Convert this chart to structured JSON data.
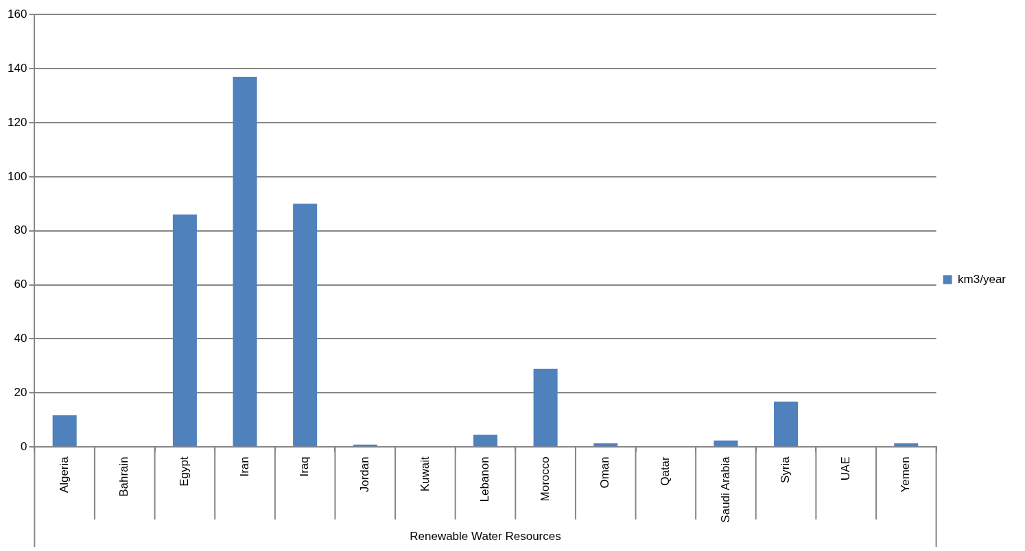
{
  "chart_data": {
    "type": "bar",
    "xlabel": "Renewable Water Resources",
    "categories": [
      "Algeria",
      "Bahrain",
      "Egypt",
      "Iran",
      "Iraq",
      "Jordan",
      "Kuwait",
      "Lebanon",
      "Morocco",
      "Oman",
      "Qatar",
      "Saudi Arabia",
      "Syria",
      "UAE",
      "Yemen"
    ],
    "series": [
      {
        "name": "km3/year",
        "color": "#4f81bd",
        "values": [
          11.7,
          0,
          86,
          137,
          90,
          0.9,
          0,
          4.5,
          29,
          1.4,
          0,
          2.4,
          16.8,
          0,
          1.4
        ]
      }
    ],
    "ylim": [
      0,
      160
    ],
    "yticks": [
      0,
      20,
      40,
      60,
      80,
      100,
      120,
      140,
      160
    ],
    "grid": "y",
    "legend": "right"
  }
}
